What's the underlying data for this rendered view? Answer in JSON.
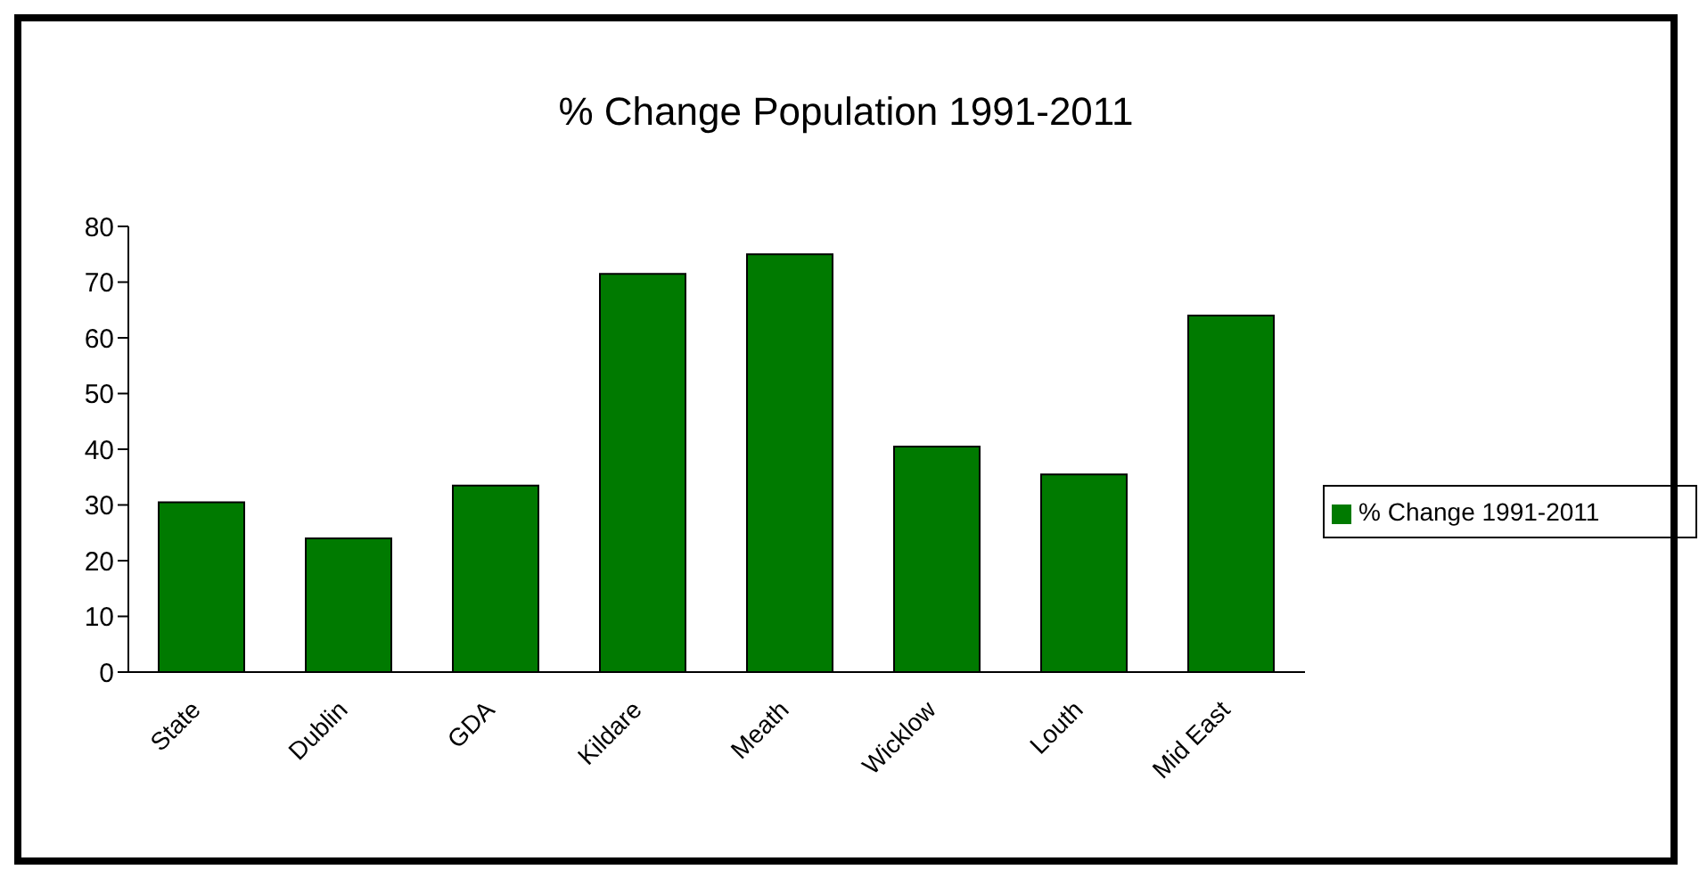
{
  "chart_data": {
    "type": "bar",
    "title": "% Change Population 1991-2011",
    "categories": [
      "State",
      "Dublin",
      "GDA",
      "Kildare",
      "Meath",
      "Wicklow",
      "Louth",
      "Mid East"
    ],
    "series": [
      {
        "name": "% Change 1991-2011",
        "color": "#007a00",
        "values": [
          30.5,
          24,
          33.5,
          71.5,
          75,
          40.5,
          35.5,
          64
        ]
      }
    ],
    "ylim": [
      0,
      80
    ],
    "yticks": [
      0,
      10,
      20,
      30,
      40,
      50,
      60,
      70,
      80
    ],
    "grid": false,
    "legend": "right"
  }
}
